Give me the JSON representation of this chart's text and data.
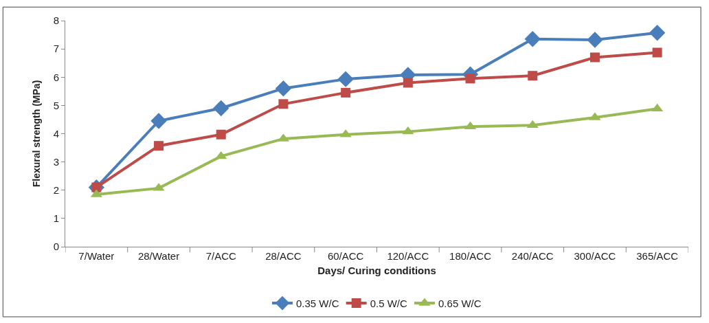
{
  "chart_data": {
    "type": "line",
    "xlabel": "Days/ Curing conditions",
    "ylabel": "Flexural strength (MPa)",
    "categories": [
      "7/Water",
      "28/Water",
      "7/ACC",
      "28/ACC",
      "60/ACC",
      "120/ACC",
      "180/ACC",
      "240/ACC",
      "300/ACC",
      "365/ACC"
    ],
    "series": [
      {
        "name": "0.35 W/C",
        "color": "#4a7ebb",
        "marker": "diamond",
        "values": [
          2.1,
          4.45,
          4.9,
          5.6,
          5.93,
          6.08,
          6.1,
          7.35,
          7.32,
          7.57
        ]
      },
      {
        "name": "0.5 W/C",
        "color": "#be4b48",
        "marker": "square",
        "values": [
          2.1,
          3.57,
          3.97,
          5.05,
          5.45,
          5.8,
          5.95,
          6.05,
          6.7,
          6.87
        ]
      },
      {
        "name": "0.65 W/C",
        "color": "#98b954",
        "marker": "triangle",
        "values": [
          1.85,
          2.07,
          3.2,
          3.82,
          3.97,
          4.07,
          4.25,
          4.3,
          4.57,
          4.88
        ]
      }
    ],
    "ylim": [
      0,
      8
    ],
    "yticks": [
      0,
      1,
      2,
      3,
      4,
      5,
      6,
      7,
      8
    ],
    "legend": "bottom",
    "line_style": "solid"
  }
}
